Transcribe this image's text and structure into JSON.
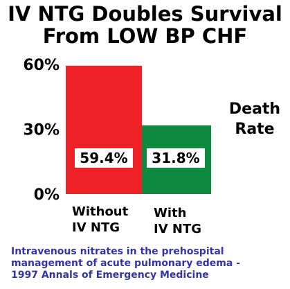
{
  "title_lines": [
    "IV NTG Doubles Survival",
    "From LOW BP CHF"
  ],
  "side_label_lines": [
    "Death",
    "Rate"
  ],
  "citation_lines": [
    "Intravenous nitrates in the prehospital",
    "management of acute pulmonary edema -",
    "1997 Annals of Emergency Medicine"
  ],
  "colors": {
    "without_bar": "#ee2226",
    "with_bar": "#0d8a3f",
    "label_box": "#ffffff",
    "citation": "#3333aa"
  },
  "chart_data": {
    "type": "bar",
    "title": "",
    "ylabel": "Death Rate",
    "ylim": [
      0,
      60
    ],
    "yticks": [
      {
        "value": 0,
        "label": "0%"
      },
      {
        "value": 30,
        "label": "30%"
      },
      {
        "value": 60,
        "label": "60%"
      }
    ],
    "grid": false,
    "categories": [
      {
        "lines": [
          "Without",
          "IV NTG"
        ]
      },
      {
        "lines": [
          "With",
          "IV NTG"
        ]
      }
    ],
    "values": [
      59.4,
      31.8
    ],
    "data_labels": [
      "59.4%",
      "31.8%"
    ]
  }
}
